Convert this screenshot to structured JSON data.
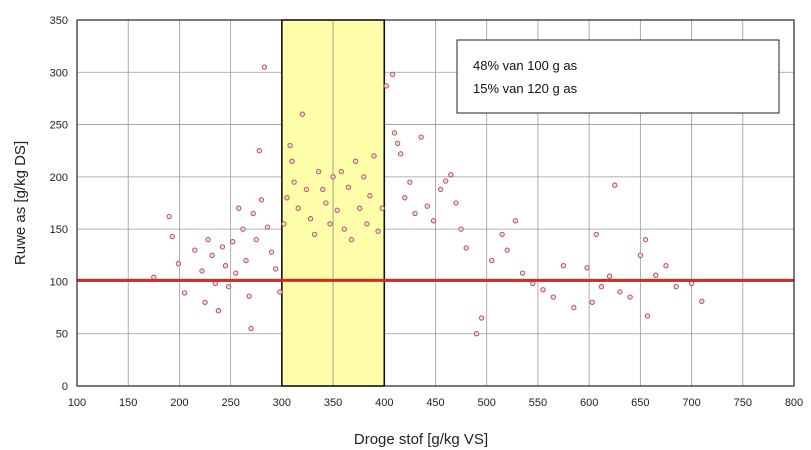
{
  "chart_data": {
    "type": "scatter",
    "title": "",
    "xlabel": "Droge stof [g/kg VS]",
    "ylabel": "Ruwe as [g/kg DS]",
    "xlim": [
      100,
      800
    ],
    "ylim": [
      0,
      350
    ],
    "x_ticks": [
      100,
      150,
      200,
      250,
      300,
      350,
      400,
      450,
      500,
      550,
      600,
      650,
      700,
      750,
      800
    ],
    "y_ticks": [
      0,
      50,
      100,
      150,
      200,
      250,
      300,
      350
    ],
    "grid": true,
    "highlight_band": {
      "x_from": 300,
      "x_to": 400,
      "color": "#ffffaa"
    },
    "reference_line": {
      "y": 101,
      "color": "#d22b1f"
    },
    "annotation_lines": [
      "48% van 100 g as",
      "15% van 120 g as"
    ],
    "marker_color": "#b04a4a",
    "series": [
      {
        "points": [
          [
            175,
            104
          ],
          [
            190,
            162
          ],
          [
            193,
            143
          ],
          [
            199,
            117
          ],
          [
            205,
            89
          ],
          [
            215,
            130
          ],
          [
            222,
            110
          ],
          [
            225,
            80
          ],
          [
            228,
            140
          ],
          [
            232,
            125
          ],
          [
            235,
            98
          ],
          [
            238,
            72
          ],
          [
            242,
            133
          ],
          [
            245,
            115
          ],
          [
            248,
            95
          ],
          [
            252,
            138
          ],
          [
            255,
            108
          ],
          [
            258,
            170
          ],
          [
            262,
            150
          ],
          [
            265,
            120
          ],
          [
            268,
            86
          ],
          [
            270,
            55
          ],
          [
            272,
            165
          ],
          [
            275,
            140
          ],
          [
            278,
            225
          ],
          [
            280,
            178
          ],
          [
            283,
            305
          ],
          [
            286,
            152
          ],
          [
            290,
            128
          ],
          [
            294,
            112
          ],
          [
            298,
            90
          ],
          [
            302,
            155
          ],
          [
            305,
            180
          ],
          [
            308,
            230
          ],
          [
            310,
            215
          ],
          [
            312,
            195
          ],
          [
            316,
            170
          ],
          [
            320,
            260
          ],
          [
            324,
            188
          ],
          [
            328,
            160
          ],
          [
            332,
            145
          ],
          [
            336,
            205
          ],
          [
            340,
            188
          ],
          [
            343,
            175
          ],
          [
            347,
            155
          ],
          [
            350,
            200
          ],
          [
            354,
            168
          ],
          [
            358,
            205
          ],
          [
            361,
            150
          ],
          [
            365,
            190
          ],
          [
            368,
            140
          ],
          [
            372,
            215
          ],
          [
            376,
            170
          ],
          [
            380,
            200
          ],
          [
            383,
            155
          ],
          [
            386,
            182
          ],
          [
            390,
            220
          ],
          [
            394,
            148
          ],
          [
            398,
            170
          ],
          [
            402,
            287
          ],
          [
            408,
            298
          ],
          [
            410,
            242
          ],
          [
            413,
            232
          ],
          [
            416,
            222
          ],
          [
            420,
            180
          ],
          [
            425,
            195
          ],
          [
            430,
            165
          ],
          [
            436,
            238
          ],
          [
            442,
            172
          ],
          [
            448,
            158
          ],
          [
            455,
            188
          ],
          [
            460,
            196
          ],
          [
            465,
            202
          ],
          [
            470,
            175
          ],
          [
            475,
            150
          ],
          [
            480,
            132
          ],
          [
            490,
            50
          ],
          [
            495,
            65
          ],
          [
            505,
            120
          ],
          [
            515,
            145
          ],
          [
            520,
            130
          ],
          [
            528,
            158
          ],
          [
            535,
            108
          ],
          [
            545,
            98
          ],
          [
            555,
            92
          ],
          [
            565,
            85
          ],
          [
            575,
            115
          ],
          [
            585,
            75
          ],
          [
            598,
            113
          ],
          [
            603,
            80
          ],
          [
            607,
            145
          ],
          [
            612,
            95
          ],
          [
            620,
            105
          ],
          [
            625,
            192
          ],
          [
            630,
            90
          ],
          [
            640,
            85
          ],
          [
            650,
            125
          ],
          [
            655,
            140
          ],
          [
            657,
            67
          ],
          [
            665,
            106
          ],
          [
            675,
            115
          ],
          [
            685,
            95
          ],
          [
            700,
            98
          ],
          [
            710,
            81
          ]
        ]
      }
    ]
  }
}
